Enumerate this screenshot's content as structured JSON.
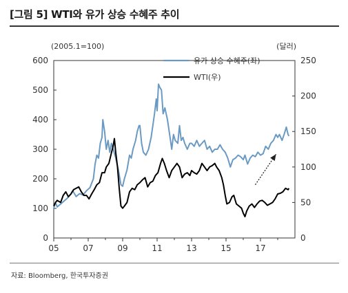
{
  "header": {
    "title": "[그림 5] WTI와 유가 상승 수혜주 추이"
  },
  "footer": {
    "source": "자료: Bloomberg, 한국투자증권"
  },
  "chart_data": {
    "type": "line",
    "left_axis_label": "(2005.1=100)",
    "right_axis_label": "(달러)",
    "y_left_range": [
      0,
      600
    ],
    "y_right_range": [
      0,
      250
    ],
    "y_left_ticks": [
      "0",
      "100",
      "200",
      "300",
      "400",
      "500",
      "600"
    ],
    "y_right_ticks": [
      "0",
      "50",
      "100",
      "150",
      "200",
      "250"
    ],
    "x_range": [
      2005,
      2019
    ],
    "x_ticks": [
      {
        "value": 2005,
        "label": "05"
      },
      {
        "value": 2007,
        "label": "07"
      },
      {
        "value": 2009,
        "label": "09"
      },
      {
        "value": 2011,
        "label": "11"
      },
      {
        "value": 2013,
        "label": "13"
      },
      {
        "value": 2015,
        "label": "15"
      },
      {
        "value": 2017,
        "label": "17"
      }
    ],
    "legend_position": "top-right",
    "series": [
      {
        "name": "유가 상승 수혜주(좌)",
        "axis": "left",
        "color": "#6a9ac3",
        "points": [
          [
            2005.0,
            100
          ],
          [
            2005.1,
            120
          ],
          [
            2005.2,
            105
          ],
          [
            2005.4,
            115
          ],
          [
            2005.6,
            125
          ],
          [
            2005.8,
            135
          ],
          [
            2006.0,
            150
          ],
          [
            2006.1,
            160
          ],
          [
            2006.3,
            140
          ],
          [
            2006.5,
            150
          ],
          [
            2006.7,
            145
          ],
          [
            2006.9,
            160
          ],
          [
            2007.1,
            170
          ],
          [
            2007.3,
            200
          ],
          [
            2007.4,
            250
          ],
          [
            2007.5,
            280
          ],
          [
            2007.6,
            270
          ],
          [
            2007.7,
            320
          ],
          [
            2007.8,
            340
          ],
          [
            2007.85,
            400
          ],
          [
            2007.95,
            360
          ],
          [
            2008.05,
            300
          ],
          [
            2008.15,
            330
          ],
          [
            2008.25,
            290
          ],
          [
            2008.35,
            320
          ],
          [
            2008.45,
            300
          ],
          [
            2008.6,
            270
          ],
          [
            2008.75,
            230
          ],
          [
            2008.9,
            180
          ],
          [
            2009.0,
            175
          ],
          [
            2009.1,
            200
          ],
          [
            2009.25,
            230
          ],
          [
            2009.4,
            280
          ],
          [
            2009.5,
            270
          ],
          [
            2009.6,
            300
          ],
          [
            2009.75,
            330
          ],
          [
            2009.85,
            360
          ],
          [
            2009.95,
            380
          ],
          [
            2010.0,
            380
          ],
          [
            2010.1,
            320
          ],
          [
            2010.2,
            290
          ],
          [
            2010.35,
            280
          ],
          [
            2010.5,
            300
          ],
          [
            2010.65,
            340
          ],
          [
            2010.75,
            380
          ],
          [
            2010.85,
            420
          ],
          [
            2010.95,
            470
          ],
          [
            2011.0,
            430
          ],
          [
            2011.08,
            520
          ],
          [
            2011.15,
            510
          ],
          [
            2011.25,
            500
          ],
          [
            2011.35,
            420
          ],
          [
            2011.45,
            440
          ],
          [
            2011.6,
            400
          ],
          [
            2011.75,
            340
          ],
          [
            2011.85,
            300
          ],
          [
            2011.95,
            350
          ],
          [
            2012.05,
            330
          ],
          [
            2012.2,
            320
          ],
          [
            2012.3,
            380
          ],
          [
            2012.4,
            330
          ],
          [
            2012.5,
            340
          ],
          [
            2012.6,
            320
          ],
          [
            2012.75,
            300
          ],
          [
            2012.9,
            320
          ],
          [
            2013.0,
            320
          ],
          [
            2013.15,
            310
          ],
          [
            2013.3,
            330
          ],
          [
            2013.45,
            310
          ],
          [
            2013.6,
            320
          ],
          [
            2013.75,
            330
          ],
          [
            2013.9,
            300
          ],
          [
            2014.05,
            310
          ],
          [
            2014.2,
            290
          ],
          [
            2014.35,
            300
          ],
          [
            2014.5,
            300
          ],
          [
            2014.65,
            315
          ],
          [
            2014.8,
            300
          ],
          [
            2014.95,
            290
          ],
          [
            2015.1,
            270
          ],
          [
            2015.25,
            240
          ],
          [
            2015.4,
            265
          ],
          [
            2015.55,
            270
          ],
          [
            2015.7,
            280
          ],
          [
            2015.85,
            275
          ],
          [
            2016.0,
            265
          ],
          [
            2016.1,
            280
          ],
          [
            2016.25,
            250
          ],
          [
            2016.4,
            270
          ],
          [
            2016.55,
            280
          ],
          [
            2016.7,
            275
          ],
          [
            2016.85,
            290
          ],
          [
            2017.0,
            280
          ],
          [
            2017.15,
            285
          ],
          [
            2017.3,
            310
          ],
          [
            2017.45,
            300
          ],
          [
            2017.6,
            320
          ],
          [
            2017.75,
            330
          ],
          [
            2017.9,
            350
          ],
          [
            2018.0,
            340
          ],
          [
            2018.1,
            350
          ],
          [
            2018.25,
            330
          ],
          [
            2018.4,
            355
          ],
          [
            2018.5,
            375
          ],
          [
            2018.6,
            350
          ],
          [
            2018.65,
            345
          ]
        ]
      },
      {
        "name": "WTI(우)",
        "axis": "right",
        "color": "#000000",
        "points": [
          [
            2005.0,
            45
          ],
          [
            2005.1,
            50
          ],
          [
            2005.2,
            53
          ],
          [
            2005.4,
            50
          ],
          [
            2005.55,
            60
          ],
          [
            2005.7,
            65
          ],
          [
            2005.85,
            58
          ],
          [
            2006.0,
            62
          ],
          [
            2006.15,
            68
          ],
          [
            2006.3,
            70
          ],
          [
            2006.45,
            72
          ],
          [
            2006.6,
            65
          ],
          [
            2006.75,
            60
          ],
          [
            2006.9,
            60
          ],
          [
            2007.05,
            55
          ],
          [
            2007.2,
            62
          ],
          [
            2007.35,
            68
          ],
          [
            2007.5,
            75
          ],
          [
            2007.65,
            78
          ],
          [
            2007.8,
            92
          ],
          [
            2007.95,
            92
          ],
          [
            2008.05,
            100
          ],
          [
            2008.2,
            105
          ],
          [
            2008.35,
            120
          ],
          [
            2008.45,
            130
          ],
          [
            2008.52,
            140
          ],
          [
            2008.6,
            120
          ],
          [
            2008.7,
            100
          ],
          [
            2008.8,
            70
          ],
          [
            2008.9,
            45
          ],
          [
            2009.0,
            42
          ],
          [
            2009.1,
            45
          ],
          [
            2009.25,
            50
          ],
          [
            2009.4,
            65
          ],
          [
            2009.55,
            70
          ],
          [
            2009.7,
            68
          ],
          [
            2009.85,
            75
          ],
          [
            2010.0,
            78
          ],
          [
            2010.15,
            82
          ],
          [
            2010.3,
            85
          ],
          [
            2010.45,
            72
          ],
          [
            2010.6,
            78
          ],
          [
            2010.75,
            80
          ],
          [
            2010.9,
            88
          ],
          [
            2011.05,
            92
          ],
          [
            2011.2,
            105
          ],
          [
            2011.3,
            112
          ],
          [
            2011.42,
            105
          ],
          [
            2011.55,
            95
          ],
          [
            2011.7,
            85
          ],
          [
            2011.85,
            95
          ],
          [
            2012.0,
            100
          ],
          [
            2012.15,
            105
          ],
          [
            2012.3,
            100
          ],
          [
            2012.45,
            85
          ],
          [
            2012.6,
            90
          ],
          [
            2012.75,
            92
          ],
          [
            2012.9,
            88
          ],
          [
            2013.0,
            95
          ],
          [
            2013.15,
            92
          ],
          [
            2013.3,
            90
          ],
          [
            2013.45,
            95
          ],
          [
            2013.6,
            105
          ],
          [
            2013.75,
            100
          ],
          [
            2013.9,
            95
          ],
          [
            2014.05,
            100
          ],
          [
            2014.2,
            102
          ],
          [
            2014.35,
            105
          ],
          [
            2014.45,
            100
          ],
          [
            2014.6,
            95
          ],
          [
            2014.75,
            85
          ],
          [
            2014.85,
            75
          ],
          [
            2014.95,
            60
          ],
          [
            2015.05,
            48
          ],
          [
            2015.2,
            50
          ],
          [
            2015.35,
            58
          ],
          [
            2015.45,
            60
          ],
          [
            2015.6,
            48
          ],
          [
            2015.75,
            45
          ],
          [
            2015.9,
            42
          ],
          [
            2016.0,
            35
          ],
          [
            2016.1,
            30
          ],
          [
            2016.2,
            38
          ],
          [
            2016.35,
            45
          ],
          [
            2016.5,
            48
          ],
          [
            2016.65,
            43
          ],
          [
            2016.8,
            48
          ],
          [
            2016.95,
            52
          ],
          [
            2017.1,
            53
          ],
          [
            2017.25,
            50
          ],
          [
            2017.4,
            46
          ],
          [
            2017.55,
            48
          ],
          [
            2017.7,
            50
          ],
          [
            2017.85,
            55
          ],
          [
            2018.0,
            62
          ],
          [
            2018.15,
            63
          ],
          [
            2018.3,
            65
          ],
          [
            2018.45,
            70
          ],
          [
            2018.6,
            68
          ],
          [
            2018.65,
            70
          ]
        ]
      }
    ],
    "trend_arrow": {
      "from": [
        2016.7,
        180
      ],
      "to": [
        2017.9,
        283
      ],
      "style": "dotted"
    }
  },
  "colors": {
    "stock_line": "#6a9ac3",
    "wti_line": "#000000",
    "axis": "#333333"
  }
}
